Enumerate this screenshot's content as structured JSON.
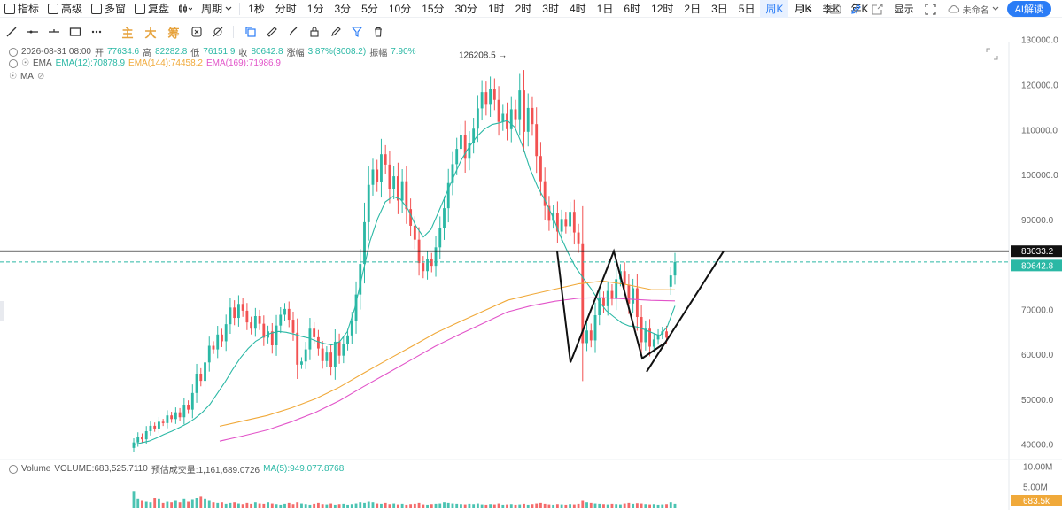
{
  "toolbar": {
    "items": [
      {
        "label": "指标",
        "icon": "indicator-icon"
      },
      {
        "label": "高级",
        "icon": "calendar-icon"
      },
      {
        "label": "多窗",
        "icon": "grid-icon"
      },
      {
        "label": "复盘",
        "icon": "replay-icon"
      },
      {
        "label": "",
        "icon": "candle-type-icon"
      },
      {
        "label": "周期",
        "icon": "chevron-down-icon"
      }
    ],
    "timeframes": [
      "1秒",
      "分时",
      "1分",
      "3分",
      "5分",
      "10分",
      "15分",
      "30分",
      "1时",
      "2时",
      "3时",
      "4时",
      "1日",
      "6时",
      "12时",
      "2日",
      "3日",
      "5日",
      "周K",
      "月K",
      "季K",
      "年K"
    ],
    "active_timeframe": "周K",
    "right_timeframe": "1s",
    "display_label": "显示",
    "workspace_name": "未命名",
    "ai_label": "AI解读"
  },
  "drawtools": {
    "text_tools": [
      "主",
      "大",
      "筹"
    ]
  },
  "info": {
    "date": "2026-08-31 08:00",
    "open_label": "开",
    "open": "77634.6",
    "high_label": "高",
    "high": "82282.8",
    "low_label": "低",
    "low": "76151.9",
    "close_label": "收",
    "close": "80642.8",
    "change_label": "涨幅",
    "change": "3.87%(3008.2)",
    "amp_label": "振幅",
    "amp": "7.90%",
    "ema_name": "EMA",
    "ema12": "EMA(12):70878.9",
    "ema144": "EMA(144):74458.2",
    "ema169": "EMA(169):71986.9",
    "ma_name": "MA"
  },
  "volume": {
    "name": "Volume",
    "value": "VOLUME:683,525.7110",
    "estimate": "预估成交量:1,161,689.0726",
    "ma": "MA(5):949,077.8768",
    "axis": [
      "10.00M",
      "5.00M"
    ],
    "current_tag": "683.5k"
  },
  "colors": {
    "up": "#2bb8a5",
    "down": "#f25151",
    "ema12": "#2bb8a5",
    "ema144": "#f0a93a",
    "ema169": "#e254c9",
    "accent": "#2a7cf6",
    "pattern": "#111111"
  },
  "chart_data": {
    "type": "candlestick",
    "y_ticks": [
      130000,
      120000,
      110000,
      100000,
      90000,
      80000,
      70000,
      60000,
      50000,
      40000
    ],
    "y_tick_labels": [
      "130000.0",
      "120000.0",
      "110000.0",
      "100000.0",
      "90000.0",
      "80000.0",
      "70000.0",
      "60000.0",
      "50000.0",
      "40000.0"
    ],
    "ylim": [
      36500,
      133000
    ],
    "peak_label": "126208.5",
    "peak_value": 126208.5,
    "horizontal_line": 83033.2,
    "horizontal_line_label": "83033.2",
    "current_price": 80642.8,
    "current_price_label": "80642.8",
    "closes": [
      40500,
      41800,
      41200,
      43000,
      44200,
      43600,
      45100,
      44800,
      46500,
      45700,
      47200,
      46100,
      48900,
      47800,
      51500,
      55800,
      54200,
      58300,
      62000,
      61200,
      64500,
      63000,
      66800,
      70500,
      68200,
      71300,
      69800,
      67200,
      65800,
      68600,
      66900,
      63800,
      65200,
      62100,
      66500,
      68900,
      70200,
      67800,
      64900,
      57800,
      58500,
      61200,
      65800,
      63900,
      61400,
      58600,
      60500,
      57200,
      62900,
      59800,
      62400,
      64300,
      67600,
      73400,
      80200,
      89500,
      97800,
      101200,
      98400,
      104600,
      102300,
      96800,
      99700,
      94300,
      98600,
      92400,
      88700,
      85600,
      80400,
      78600,
      81200,
      79800,
      83900,
      88200,
      92600,
      98200,
      102400,
      105800,
      108900,
      103600,
      107200,
      110300,
      114800,
      118400,
      115600,
      119200,
      116700,
      111800,
      113600,
      110200,
      114600,
      112400,
      118800,
      109600,
      114900,
      111300,
      104200,
      98600,
      93100,
      89800,
      91600,
      87400,
      90200,
      88600,
      91800,
      87200,
      84600,
      62600,
      65400,
      63200,
      68800,
      72600,
      70800,
      74200,
      72400,
      76800,
      78600,
      75600,
      71400,
      74800,
      68400,
      62800,
      65800,
      61800,
      63400,
      64500,
      65200,
      63800,
      77634.6,
      80642.8
    ],
    "ema12": [
      40000,
      40400,
      40800,
      41500,
      42300,
      43000,
      43800,
      44700,
      45800,
      47200,
      49000,
      51500,
      54000,
      56800,
      59300,
      61400,
      63000,
      64000,
      64800,
      65200,
      65000,
      64600,
      64100,
      63700,
      63000,
      62500,
      62200,
      62900,
      65100,
      70400,
      77800,
      85300,
      90300,
      94000,
      95200,
      94600,
      92300,
      88700,
      86200,
      87900,
      91800,
      95800,
      99700,
      103400,
      106200,
      108500,
      110200,
      111200,
      111600,
      112100,
      110600,
      106500,
      101300,
      97300,
      94200,
      90600,
      86300,
      82600,
      79400,
      77000,
      74700,
      72000,
      69800,
      68400,
      67100,
      66400,
      66200,
      65600,
      64900,
      64200,
      66300,
      70878.9
    ],
    "ema144": [
      44100,
      45300,
      46500,
      48200,
      50200,
      52800,
      55900,
      58900,
      61800,
      64800,
      67300,
      69700,
      72100,
      73400,
      74600,
      75800,
      76400,
      75600,
      74500,
      74458.2
    ],
    "ema169": [
      40800,
      42000,
      43300,
      45100,
      47200,
      49800,
      52900,
      55900,
      58900,
      61900,
      64500,
      67000,
      69500,
      70900,
      71900,
      72600,
      72700,
      72400,
      72100,
      71986.9
    ],
    "volumes": [
      0.55,
      0.3,
      0.25,
      0.22,
      0.2,
      0.35,
      0.3,
      0.18,
      0.22,
      0.2,
      0.25,
      0.2,
      0.3,
      0.22,
      0.28,
      0.35,
      0.4,
      0.3,
      0.25,
      0.2,
      0.18,
      0.2,
      0.15,
      0.18,
      0.2,
      0.16,
      0.14,
      0.18,
      0.15,
      0.2,
      0.16,
      0.15,
      0.2,
      0.16,
      0.14,
      0.12,
      0.15,
      0.18,
      0.14,
      0.2,
      0.16,
      0.14,
      0.12,
      0.15,
      0.18,
      0.14,
      0.13,
      0.16,
      0.12,
      0.14,
      0.15,
      0.12,
      0.14,
      0.16,
      0.2,
      0.18,
      0.22,
      0.2,
      0.16,
      0.15,
      0.18,
      0.14,
      0.16,
      0.13,
      0.15,
      0.12,
      0.14,
      0.15,
      0.18,
      0.13,
      0.12,
      0.14,
      0.15,
      0.16,
      0.2,
      0.18,
      0.16,
      0.15,
      0.14,
      0.13,
      0.15,
      0.14,
      0.16,
      0.13,
      0.12,
      0.14,
      0.13,
      0.16,
      0.12,
      0.13,
      0.14,
      0.12,
      0.13,
      0.15,
      0.12,
      0.14,
      0.16,
      0.18,
      0.15,
      0.13,
      0.12,
      0.14,
      0.13,
      0.12,
      0.14,
      0.13,
      0.15,
      0.25,
      0.2,
      0.18,
      0.16,
      0.15,
      0.14,
      0.13,
      0.15,
      0.14,
      0.13,
      0.16,
      0.18,
      0.15,
      0.17,
      0.16,
      0.14,
      0.13,
      0.14,
      0.12,
      0.13,
      0.14,
      0.2,
      0.15
    ]
  }
}
